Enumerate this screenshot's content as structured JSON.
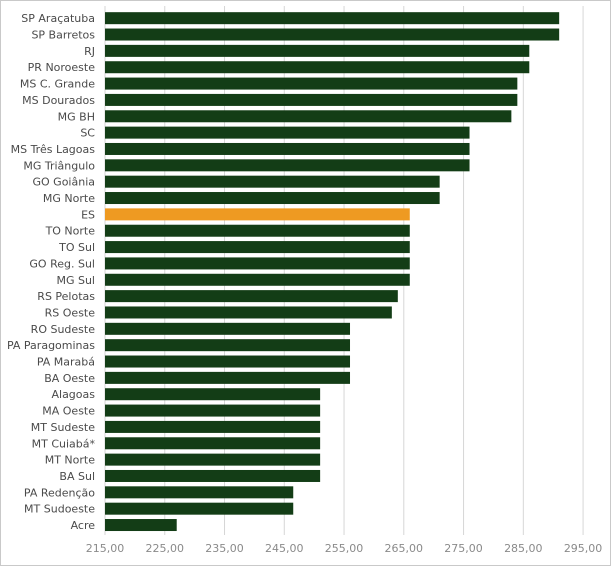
{
  "chart_data": {
    "type": "bar",
    "orientation": "horizontal",
    "categories": [
      "SP Araçatuba",
      "SP Barretos",
      "RJ",
      "PR Noroeste",
      "MS C. Grande",
      "MS Dourados",
      "MG BH",
      "SC",
      "MS Três Lagoas",
      "MG Triângulo",
      "GO Goiânia",
      "MG Norte",
      "ES",
      "TO Norte",
      "TO Sul",
      "GO Reg. Sul",
      "MG Sul",
      "RS Pelotas",
      "RS Oeste",
      "RO Sudeste",
      "PA Paragominas",
      "PA Marabá",
      "BA Oeste",
      "Alagoas",
      "MA Oeste",
      "MT Sudeste",
      "MT Cuiabá*",
      "MT Norte",
      "BA Sul",
      "PA Redenção",
      "MT Sudoeste",
      "Acre"
    ],
    "values": [
      291,
      291,
      286,
      286,
      284,
      284,
      283,
      276,
      276,
      276,
      271,
      271,
      266,
      266,
      266,
      266,
      266,
      264,
      263,
      256,
      256,
      256,
      256,
      251,
      251,
      251,
      251,
      251,
      251,
      246.5,
      246.5,
      227
    ],
    "highlight": "ES",
    "colors": {
      "bar": "#133d16",
      "highlight": "#ee9a22"
    },
    "xlim": [
      215,
      298
    ],
    "x_ticks": [
      "215,00",
      "225,00",
      "235,00",
      "245,00",
      "255,00",
      "265,00",
      "275,00",
      "285,00",
      "295,00"
    ],
    "x_tick_values": [
      215,
      225,
      235,
      245,
      255,
      265,
      275,
      285,
      295
    ],
    "grid": "vertical",
    "title": "",
    "xlabel": "",
    "ylabel": ""
  }
}
